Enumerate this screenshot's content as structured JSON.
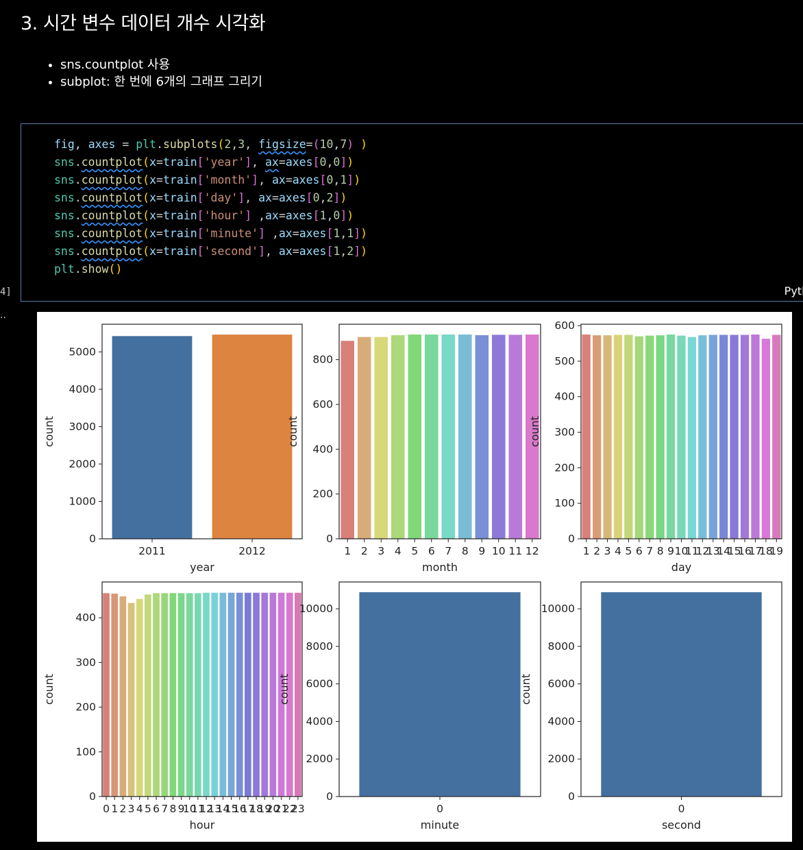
{
  "title": "3. 시간 변수 데이터 개수 시각화",
  "bullets": [
    "sns.countplot 사용",
    "subplot: 한 번에 6개의 그래프 그리기"
  ],
  "cell": {
    "exec_count": "4]",
    "language": "Pytho",
    "output_marker": "··"
  },
  "code_lines": [
    "fig, axes = plt.subplots(2,3, figsize=(10,7) )",
    "sns.countplot(x=train['year'], ax=axes[0,0])",
    "sns.countplot(x=train['month'], ax=axes[0,1])",
    "sns.countplot(x=train['day'], ax=axes[0,2])",
    "sns.countplot(x=train['hour'] ,ax=axes[1,0])",
    "sns.countplot(x=train['minute'] ,ax=axes[1,1])",
    "sns.countplot(x=train['second'], ax=axes[1,2])",
    "plt.show()"
  ],
  "chart_data": [
    {
      "type": "bar",
      "xlabel": "year",
      "ylabel": "count",
      "categories": [
        "2011",
        "2012"
      ],
      "values": [
        5422,
        5464
      ],
      "ylim": [
        0,
        5740
      ],
      "yticks": [
        0,
        1000,
        2000,
        3000,
        4000,
        5000
      ],
      "palette": "deep",
      "colors": [
        "#4470a0",
        "#dd8441"
      ]
    },
    {
      "type": "bar",
      "xlabel": "month",
      "ylabel": "count",
      "categories": [
        "1",
        "2",
        "3",
        "4",
        "5",
        "6",
        "7",
        "8",
        "9",
        "10",
        "11",
        "12"
      ],
      "values": [
        884,
        901,
        901,
        909,
        912,
        912,
        912,
        912,
        909,
        911,
        911,
        912
      ],
      "ylim": [
        0,
        958
      ],
      "yticks": [
        0,
        200,
        400,
        600,
        800
      ],
      "palette": "husl"
    },
    {
      "type": "bar",
      "xlabel": "day",
      "ylabel": "count",
      "categories": [
        "1",
        "2",
        "3",
        "4",
        "5",
        "6",
        "7",
        "8",
        "9",
        "10",
        "11",
        "12",
        "13",
        "14",
        "15",
        "16",
        "17",
        "18",
        "19"
      ],
      "values": [
        575,
        573,
        573,
        574,
        574,
        570,
        572,
        573,
        575,
        572,
        568,
        573,
        574,
        574,
        574,
        574,
        575,
        563,
        574
      ],
      "ylim": [
        0,
        604
      ],
      "yticks": [
        0,
        100,
        200,
        300,
        400,
        500,
        600
      ],
      "palette": "husl"
    },
    {
      "type": "bar",
      "xlabel": "hour",
      "ylabel": "count",
      "categories": [
        "0",
        "1",
        "2",
        "3",
        "4",
        "5",
        "6",
        "7",
        "8",
        "9",
        "10",
        "11",
        "12",
        "13",
        "14",
        "15",
        "16",
        "17",
        "18",
        "19",
        "20",
        "21",
        "22",
        "23"
      ],
      "values": [
        455,
        454,
        448,
        433,
        442,
        452,
        455,
        455,
        455,
        455,
        455,
        455,
        456,
        456,
        456,
        456,
        456,
        456,
        456,
        456,
        456,
        456,
        456,
        456
      ],
      "ylim": [
        0,
        480
      ],
      "yticks": [
        0,
        100,
        200,
        300,
        400
      ],
      "palette": "husl"
    },
    {
      "type": "bar",
      "xlabel": "minute",
      "ylabel": "count",
      "categories": [
        "0"
      ],
      "values": [
        10886
      ],
      "ylim": [
        0,
        11430
      ],
      "yticks": [
        0,
        2000,
        4000,
        6000,
        8000,
        10000
      ],
      "colors": [
        "#4470a0"
      ]
    },
    {
      "type": "bar",
      "xlabel": "second",
      "ylabel": "count",
      "categories": [
        "0"
      ],
      "values": [
        10886
      ],
      "ylim": [
        0,
        11430
      ],
      "yticks": [
        0,
        2000,
        4000,
        6000,
        8000,
        10000
      ],
      "colors": [
        "#4470a0"
      ]
    }
  ]
}
